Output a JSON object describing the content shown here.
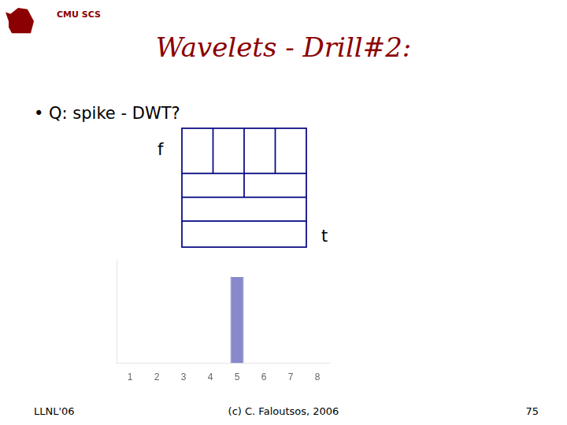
{
  "chart_data": {
    "type": "bar",
    "title": "Wavelets - Drill#2:",
    "categories": [
      1,
      2,
      3,
      4,
      5,
      6,
      7,
      8
    ],
    "values": [
      0,
      0,
      0,
      0,
      1,
      0,
      0,
      0
    ],
    "color": "#8888cc",
    "ylim": [
      0,
      1.2
    ],
    "grid": false,
    "tick_labels": "x",
    "annotations": [
      "CMU SCS",
      "• Q: spike - DWT?",
      "f",
      "t",
      "LLNL'06",
      "(c) C. Faloutsos, 2006",
      "75"
    ]
  }
}
